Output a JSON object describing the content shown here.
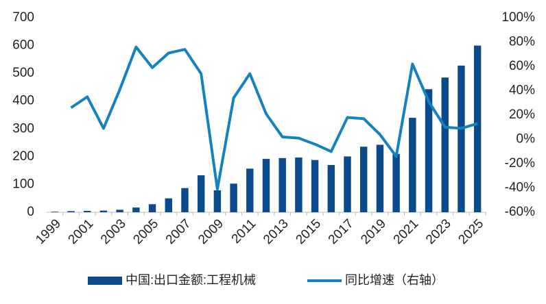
{
  "chart_data": {
    "type": "bar-line",
    "categories": [
      "1999",
      null,
      "2001",
      null,
      "2003",
      null,
      "2005",
      null,
      "2007",
      null,
      "2009",
      null,
      "2011",
      null,
      "2013",
      null,
      "2015",
      null,
      "2017",
      null,
      "2019",
      null,
      "2021",
      null,
      "2023",
      null,
      "2025"
    ],
    "series": [
      {
        "name": "中国:出口金额:工程机械",
        "type": "bar",
        "color": "#0b4a8b",
        "values": [
          2,
          4,
          5,
          6,
          9,
          17,
          29,
          50,
          87,
          133,
          79,
          103,
          157,
          192,
          195,
          197,
          188,
          170,
          201,
          236,
          243,
          210,
          340,
          443,
          485,
          528,
          600
        ]
      },
      {
        "name": "同比增速（右轴）",
        "type": "line",
        "axis": "y2",
        "color": "#1582c0",
        "values": [
          null,
          26,
          35,
          9,
          41,
          76,
          59,
          71,
          74,
          54,
          -41,
          34,
          54,
          21,
          2,
          1,
          -4,
          -10,
          18,
          17,
          4,
          -14,
          62,
          31,
          10,
          9,
          13
        ]
      }
    ],
    "ylim": [
      0,
      700
    ],
    "yticks": [
      0,
      100,
      200,
      300,
      400,
      500,
      600,
      700
    ],
    "y2lim": [
      -60,
      100
    ],
    "y2ticks": [
      {
        "value": -60,
        "label": "-60%"
      },
      {
        "value": -40,
        "label": "-40%"
      },
      {
        "value": -20,
        "label": "-20%"
      },
      {
        "value": 0,
        "label": "0%"
      },
      {
        "value": 20,
        "label": "20%"
      },
      {
        "value": 40,
        "label": "40%"
      },
      {
        "value": 60,
        "label": "60%"
      },
      {
        "value": 80,
        "label": "80%"
      },
      {
        "value": 100,
        "label": "100%"
      }
    ],
    "legend": "bottom"
  }
}
